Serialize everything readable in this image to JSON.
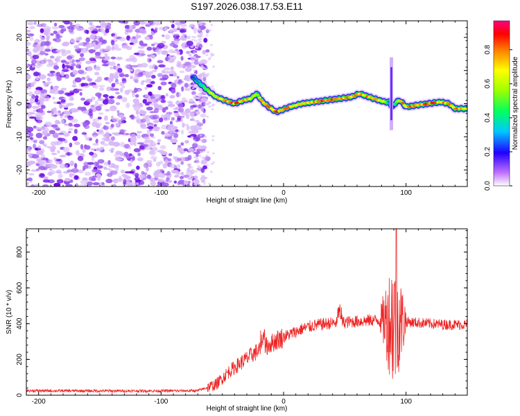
{
  "title": "S197.2026.038.17.53.E11",
  "chart_data": [
    {
      "type": "heatmap",
      "name": "spectrogram",
      "xlabel": "Height of straight line (km)",
      "ylabel": "Frequency (Hz)",
      "xlim": [
        -210,
        150
      ],
      "ylim": [
        -25,
        25
      ],
      "x_ticks": [
        -200,
        -100,
        0,
        100
      ],
      "x_tick_labels": [
        "-200",
        "-100",
        "0",
        "100"
      ],
      "y_ticks": [
        -20,
        -10,
        0,
        10,
        20
      ],
      "y_tick_labels": [
        "-20",
        "-10",
        "0",
        "10",
        "20"
      ],
      "noise_region_x": [
        -210,
        -62
      ],
      "ridge": {
        "x": [
          -74,
          -68,
          -62,
          -55,
          -48,
          -40,
          -33,
          -27,
          -22,
          -20,
          -17,
          -12,
          -6,
          -2,
          5,
          15,
          25,
          35,
          45,
          55,
          62,
          70,
          78,
          83,
          86,
          89,
          92,
          95,
          100,
          108,
          118,
          128,
          135,
          140,
          145,
          150
        ],
        "y": [
          8,
          6,
          4,
          2,
          1,
          0,
          1,
          1.5,
          3,
          2,
          0.5,
          -1,
          -2.5,
          -2,
          -1,
          0,
          0.5,
          1,
          1.5,
          2,
          3,
          2,
          1,
          0.5,
          0.5,
          -1,
          0.5,
          1,
          -1,
          -0.5,
          0,
          0.5,
          0,
          -1.5,
          -1.5,
          -1.5
        ],
        "color_values": [
          0.2,
          0.4,
          0.6,
          0.7,
          0.8,
          0.85,
          0.8,
          0.7,
          0.6,
          0.7,
          0.75,
          0.8,
          0.9,
          0.85,
          0.8,
          0.8,
          0.85,
          0.9,
          0.85,
          0.8,
          0.75,
          0.8,
          0.75,
          0.6,
          0.3,
          0.2,
          0.6,
          0.8,
          0.85,
          0.8,
          0.85,
          0.8,
          0.75,
          0.8,
          0.75,
          0.7
        ]
      },
      "spike": {
        "x": 88,
        "y_range": [
          -8,
          14
        ]
      }
    },
    {
      "type": "colorbar",
      "label": "Normalized spectral amplitude",
      "range": [
        0,
        0.97
      ],
      "ticks": [
        0.0,
        0.2,
        0.4,
        0.6,
        0.8
      ],
      "tick_labels": [
        "0.0",
        "0.2",
        "0.4",
        "0.6",
        "0.8"
      ],
      "colormap": [
        "#ffffff",
        "#b040ff",
        "#2000ff",
        "#00c8ff",
        "#00ff60",
        "#a0ff00",
        "#ffff00",
        "#ff8000",
        "#ff0000",
        "#ff0080"
      ]
    },
    {
      "type": "line",
      "name": "snr",
      "xlabel": "Height of straight line (km)",
      "ylabel": "SNR (10 * v/v)",
      "xlim": [
        -210,
        150
      ],
      "ylim": [
        0,
        930
      ],
      "x_ticks": [
        -200,
        -100,
        0,
        100
      ],
      "x_tick_labels": [
        "-200",
        "-100",
        "0",
        "100"
      ],
      "y_ticks": [
        0,
        200,
        400,
        600,
        800
      ],
      "y_tick_labels": [
        "0",
        "200",
        "400",
        "600",
        "800"
      ],
      "color": "#ee2222",
      "trend": {
        "x": [
          -210,
          -150,
          -100,
          -70,
          -55,
          -45,
          -35,
          -25,
          -15,
          -5,
          5,
          15,
          25,
          35,
          45,
          55,
          65,
          75,
          80,
          85,
          90,
          95,
          100,
          110,
          120,
          130,
          140,
          150
        ],
        "y": [
          25,
          24,
          24,
          25,
          60,
          130,
          180,
          230,
          270,
          310,
          340,
          370,
          390,
          400,
          405,
          410,
          415,
          420,
          420,
          420,
          420,
          415,
          410,
          405,
          400,
          395,
          395,
          395
        ]
      },
      "features": [
        {
          "x": -17,
          "y": 380
        },
        {
          "x": 46,
          "y": 520
        },
        {
          "x": 92,
          "y": 930
        }
      ]
    }
  ]
}
